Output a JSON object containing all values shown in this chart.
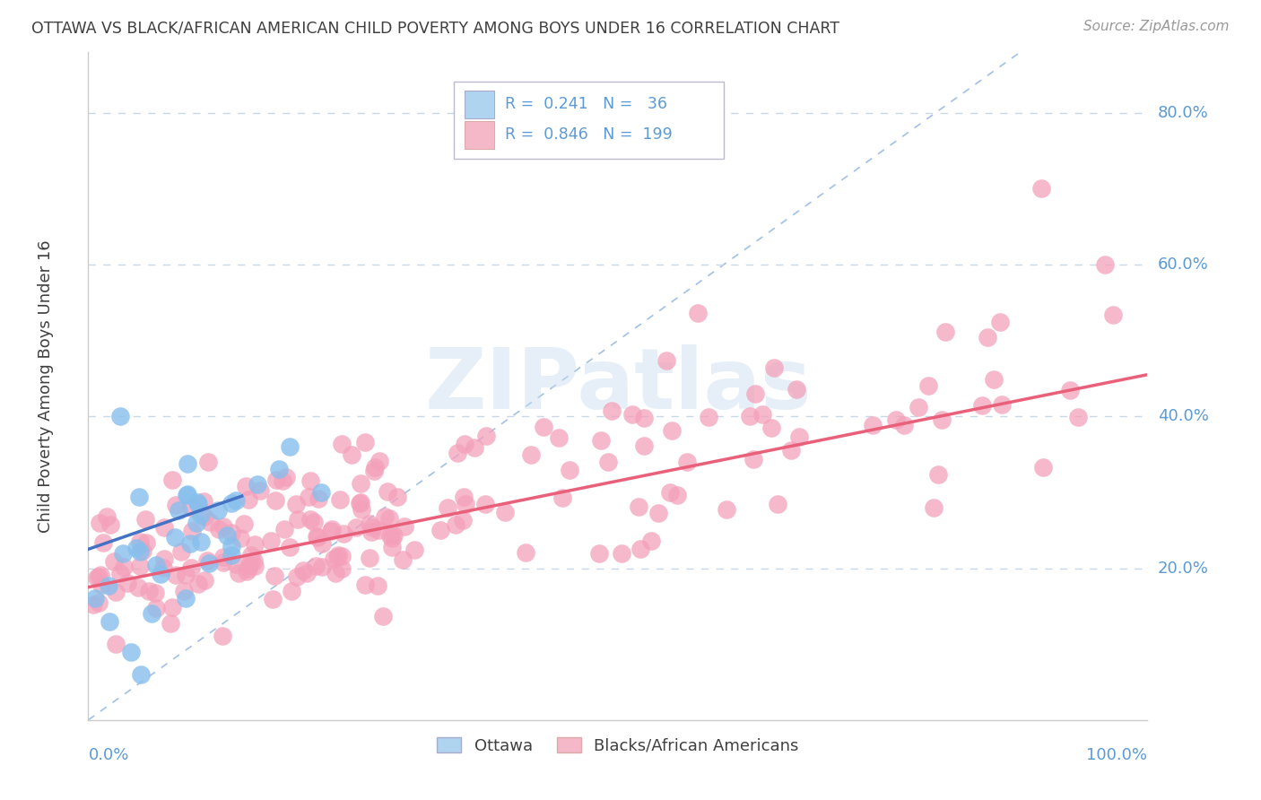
{
  "title": "OTTAWA VS BLACK/AFRICAN AMERICAN CHILD POVERTY AMONG BOYS UNDER 16 CORRELATION CHART",
  "source": "Source: ZipAtlas.com",
  "ylabel": "Child Poverty Among Boys Under 16",
  "ytick_values": [
    0.2,
    0.4,
    0.6,
    0.8
  ],
  "ytick_labels": [
    "20.0%",
    "40.0%",
    "60.0%",
    "80.0%"
  ],
  "legend_line1": "R =  0.241   N =   36",
  "legend_line2": "R =  0.846   N =  199",
  "watermark": "ZIPatlas",
  "color_ottawa": "#87BFED",
  "color_black": "#F4A0BA",
  "color_trendline_ottawa": "#4472C4",
  "color_trendline_black": "#E8607A",
  "color_diagonal": "#A0C0E8",
  "legend_box_color_ottawa": "#AED4F0",
  "legend_box_color_black": "#F5B8C8",
  "background_color": "#FFFFFF",
  "grid_color": "#C8D8E8",
  "axis_color": "#5B9BD5",
  "title_color": "#404040",
  "source_color": "#999999",
  "ylabel_color": "#404040",
  "xlim": [
    0.0,
    1.0
  ],
  "ylim": [
    0.0,
    0.88
  ],
  "trendline_black_x0": 0.0,
  "trendline_black_x1": 1.0,
  "trendline_black_y0": 0.175,
  "trendline_black_y1": 0.455,
  "trendline_ottawa_x0": 0.0,
  "trendline_ottawa_x1": 0.145,
  "trendline_ottawa_y0": 0.225,
  "trendline_ottawa_y1": 0.295
}
